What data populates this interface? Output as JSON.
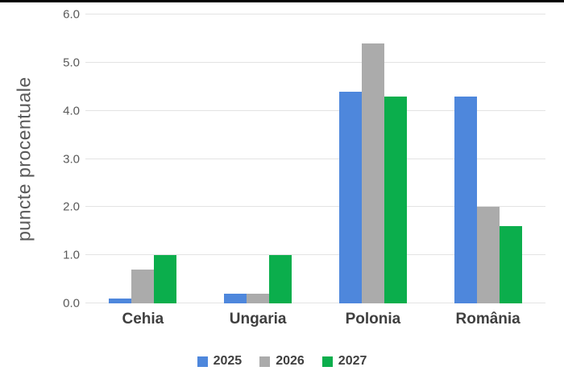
{
  "page": {
    "background": "#ffffff",
    "top_border_color": "#000000"
  },
  "chart_data": {
    "type": "bar",
    "title": "",
    "xlabel": "",
    "ylabel": "puncte procentuale",
    "categories": [
      "Cehia",
      "Ungaria",
      "Polonia",
      "România"
    ],
    "series": [
      {
        "name": "2025",
        "color": "#4e87dc",
        "values": [
          0.1,
          0.2,
          4.4,
          4.3
        ]
      },
      {
        "name": "2026",
        "color": "#ababab",
        "values": [
          0.7,
          0.2,
          5.4,
          2.0
        ]
      },
      {
        "name": "2027",
        "color": "#0bae4c",
        "values": [
          1.0,
          1.0,
          4.3,
          1.6
        ]
      }
    ],
    "ylim": [
      0,
      6
    ],
    "ytick_step": 1,
    "ytick_labels": [
      "0.0",
      "1.0",
      "2.0",
      "3.0",
      "4.0",
      "5.0",
      "6.0"
    ],
    "grid": true,
    "gridline_color": "#e3e3e3",
    "legend_position": "bottom",
    "tick_color": "#595959",
    "category_label_color": "#3f3f3f",
    "legend_text_color": "#404040"
  }
}
